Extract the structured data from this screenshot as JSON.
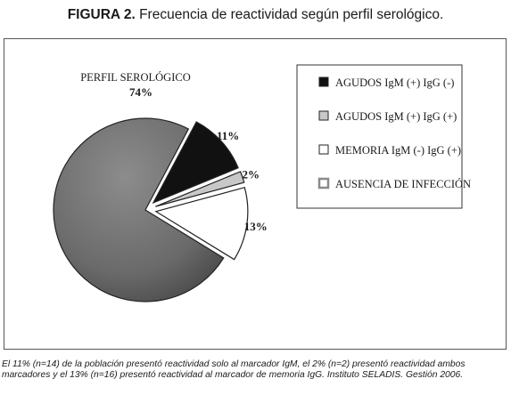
{
  "figure": {
    "label": "FIGURA 2.",
    "title": "Frecuencia de reactividad según perfil serológico."
  },
  "chart_data": {
    "type": "pie",
    "title": "PERFIL SEROLÓGICO",
    "legend_position": "top-right",
    "slices": [
      {
        "name": "AGUDOS IgM (+) IgG (-)",
        "value": 11,
        "label": "11%",
        "color": "#111111",
        "exploded": true
      },
      {
        "name": "AGUDOS IgM (+) IgG (+)",
        "value": 2,
        "label": "2%",
        "color": "#c8c8c8",
        "exploded": true
      },
      {
        "name": "MEMORIA IgM (-) IgG (+)",
        "value": 13,
        "label": "13%",
        "color": "#ffffff",
        "exploded": true
      },
      {
        "name": "AUSENCIA DE INFECCIÓN",
        "value": 74,
        "label": "74%",
        "color": "#6f6f6f",
        "exploded": false
      }
    ]
  },
  "caption": "El 11% (n=14) de la población presentó reactividad solo al marcador IgM, el 2% (n=2) presentó reactividad ambos marcadores y el 13% (n=16) presentó reactividad al marcador de memoria IgG. Instituto SELADIS. Gestión 2006."
}
